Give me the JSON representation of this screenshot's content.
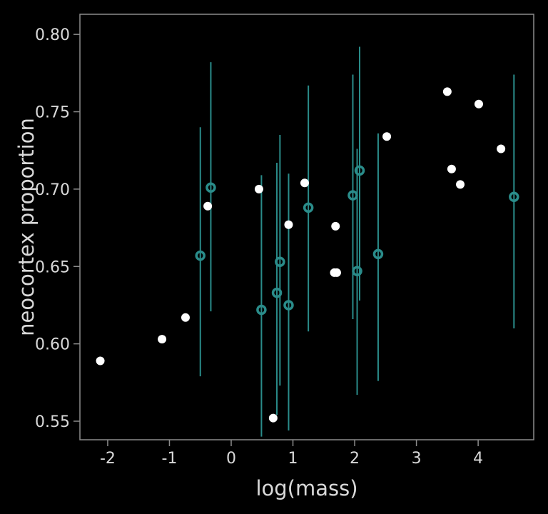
{
  "chart_data": {
    "type": "scatter",
    "xlabel": "log(mass)",
    "ylabel": "neocortex proportion",
    "xlim": [
      -2.45,
      4.9
    ],
    "ylim": [
      0.538,
      0.813
    ],
    "x_ticks": [
      -2,
      -1,
      0,
      1,
      2,
      3,
      4
    ],
    "x_tick_labels": [
      "-2",
      "-1",
      "0",
      "1",
      "2",
      "3",
      "4"
    ],
    "y_ticks": [
      0.55,
      0.6,
      0.65,
      0.7,
      0.75,
      0.8
    ],
    "y_tick_labels": [
      "0.55",
      "0.60",
      "0.65",
      "0.70",
      "0.75",
      "0.80"
    ],
    "grid": false,
    "colors": {
      "background": "#000000",
      "frame": "#8c8c8c",
      "text": "#d9d9d9",
      "observed": "#ffffff",
      "imputed": "#2a8c8a"
    },
    "series": [
      {
        "marker": "filled-circle",
        "points": [
          {
            "x": -2.12,
            "y": 0.589
          },
          {
            "x": -1.12,
            "y": 0.603
          },
          {
            "x": -0.74,
            "y": 0.617
          },
          {
            "x": -0.38,
            "y": 0.689
          },
          {
            "x": 0.45,
            "y": 0.7
          },
          {
            "x": 0.68,
            "y": 0.552
          },
          {
            "x": 0.93,
            "y": 0.677
          },
          {
            "x": 1.19,
            "y": 0.704
          },
          {
            "x": 1.67,
            "y": 0.646
          },
          {
            "x": 1.71,
            "y": 0.646
          },
          {
            "x": 1.69,
            "y": 0.676
          },
          {
            "x": 2.52,
            "y": 0.734
          },
          {
            "x": 3.5,
            "y": 0.763
          },
          {
            "x": 3.57,
            "y": 0.713
          },
          {
            "x": 3.71,
            "y": 0.703
          },
          {
            "x": 4.01,
            "y": 0.755
          },
          {
            "x": 4.37,
            "y": 0.726
          }
        ]
      },
      {
        "marker": "open-circle-with-interval",
        "points": [
          {
            "x": -0.5,
            "y": 0.657,
            "lo": 0.579,
            "hi": 0.74
          },
          {
            "x": -0.33,
            "y": 0.701,
            "lo": 0.621,
            "hi": 0.782
          },
          {
            "x": 0.49,
            "y": 0.622,
            "lo": 0.54,
            "hi": 0.709
          },
          {
            "x": 0.74,
            "y": 0.633,
            "lo": 0.554,
            "hi": 0.717
          },
          {
            "x": 0.79,
            "y": 0.653,
            "lo": 0.573,
            "hi": 0.735
          },
          {
            "x": 0.93,
            "y": 0.625,
            "lo": 0.544,
            "hi": 0.71
          },
          {
            "x": 1.25,
            "y": 0.688,
            "lo": 0.608,
            "hi": 0.767
          },
          {
            "x": 1.97,
            "y": 0.696,
            "lo": 0.616,
            "hi": 0.774
          },
          {
            "x": 2.04,
            "y": 0.647,
            "lo": 0.567,
            "hi": 0.726
          },
          {
            "x": 2.08,
            "y": 0.712,
            "lo": 0.628,
            "hi": 0.792
          },
          {
            "x": 2.38,
            "y": 0.658,
            "lo": 0.576,
            "hi": 0.736
          },
          {
            "x": 4.58,
            "y": 0.695,
            "lo": 0.61,
            "hi": 0.774
          }
        ]
      }
    ]
  }
}
